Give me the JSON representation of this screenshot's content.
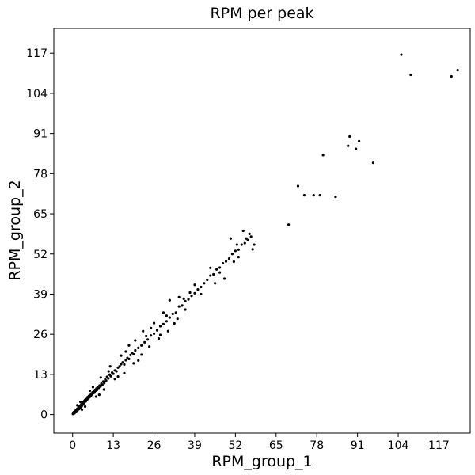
{
  "chart_data": {
    "type": "scatter",
    "title": "RPM per peak",
    "xlabel": "RPM_group_1",
    "ylabel": "RPM_group_2",
    "xlim": [
      -6,
      127
    ],
    "ylim": [
      -6,
      125
    ],
    "xticks": [
      0,
      13,
      26,
      39,
      52,
      65,
      78,
      91,
      104,
      117
    ],
    "yticks": [
      0,
      13,
      26,
      39,
      52,
      65,
      78,
      91,
      104,
      117
    ],
    "grid": false,
    "point_color": "#000000",
    "points": [
      [
        0.1,
        0.2
      ],
      [
        0.2,
        0.4
      ],
      [
        0.3,
        0.3
      ],
      [
        0.4,
        0.8
      ],
      [
        0.5,
        0.6
      ],
      [
        0.6,
        0.4
      ],
      [
        0.7,
        1.0
      ],
      [
        0.8,
        0.9
      ],
      [
        0.9,
        1.2
      ],
      [
        1.0,
        1.1
      ],
      [
        1.1,
        0.8
      ],
      [
        1.2,
        1.5
      ],
      [
        1.3,
        1.3
      ],
      [
        1.4,
        1.6
      ],
      [
        1.5,
        1.9
      ],
      [
        1.6,
        1.4
      ],
      [
        1.7,
        2.0
      ],
      [
        1.8,
        1.7
      ],
      [
        1.9,
        2.3
      ],
      [
        2.0,
        2.1
      ],
      [
        2.1,
        1.8
      ],
      [
        2.2,
        2.6
      ],
      [
        2.3,
        2.4
      ],
      [
        2.4,
        2.9
      ],
      [
        2.5,
        2.3
      ],
      [
        2.6,
        3.0
      ],
      [
        2.7,
        2.8
      ],
      [
        2.8,
        3.3
      ],
      [
        2.9,
        2.7
      ],
      [
        3.0,
        3.4
      ],
      [
        3.1,
        3.1
      ],
      [
        3.2,
        3.7
      ],
      [
        3.3,
        3.3
      ],
      [
        3.4,
        4.0
      ],
      [
        3.5,
        3.6
      ],
      [
        3.6,
        4.2
      ],
      [
        3.7,
        3.8
      ],
      [
        3.8,
        4.5
      ],
      [
        3.9,
        4.1
      ],
      [
        4.0,
        4.7
      ],
      [
        4.2,
        4.3
      ],
      [
        4.4,
        5.0
      ],
      [
        4.6,
        4.8
      ],
      [
        4.8,
        5.6
      ],
      [
        5.0,
        5.2
      ],
      [
        5.2,
        6.0
      ],
      [
        5.4,
        5.6
      ],
      [
        5.6,
        6.3
      ],
      [
        5.8,
        6.0
      ],
      [
        6.0,
        6.8
      ],
      [
        6.2,
        6.5
      ],
      [
        6.4,
        7.2
      ],
      [
        6.6,
        6.9
      ],
      [
        6.8,
        7.6
      ],
      [
        7.0,
        7.1
      ],
      [
        7.2,
        8.0
      ],
      [
        7.4,
        7.7
      ],
      [
        7.6,
        8.4
      ],
      [
        7.8,
        8.0
      ],
      [
        8.0,
        8.9
      ],
      [
        8.3,
        8.6
      ],
      [
        8.6,
        9.4
      ],
      [
        8.9,
        9.1
      ],
      [
        9.2,
        10.0
      ],
      [
        9.5,
        9.6
      ],
      [
        9.8,
        10.7
      ],
      [
        10.1,
        10.2
      ],
      [
        10.4,
        11.4
      ],
      [
        10.7,
        11.0
      ],
      [
        11.0,
        12.2
      ],
      [
        11.4,
        11.7
      ],
      [
        11.8,
        12.9
      ],
      [
        12.2,
        12.4
      ],
      [
        12.6,
        13.6
      ],
      [
        13.0,
        13.2
      ],
      [
        13.5,
        14.3
      ],
      [
        14.0,
        14.0
      ],
      [
        14.5,
        15.2
      ],
      [
        15.0,
        15.6
      ],
      [
        15.5,
        16.3
      ],
      [
        16.0,
        16.9
      ],
      [
        16.5,
        16.2
      ],
      [
        17.0,
        17.6
      ],
      [
        17.5,
        18.3
      ],
      [
        18.0,
        18.0
      ],
      [
        18.5,
        19.3
      ],
      [
        19.0,
        20.0
      ],
      [
        19.5,
        19.5
      ],
      [
        20.0,
        20.8
      ],
      [
        21.0,
        21.6
      ],
      [
        22.0,
        22.4
      ],
      [
        23.0,
        23.4
      ],
      [
        24.0,
        24.3
      ],
      [
        25.0,
        25.6
      ],
      [
        26.0,
        26.2
      ],
      [
        27.0,
        27.3
      ],
      [
        28.0,
        28.6
      ],
      [
        29.0,
        29.3
      ],
      [
        30.0,
        30.2
      ],
      [
        31.0,
        31.4
      ],
      [
        32.0,
        32.6
      ],
      [
        33.0,
        33.0
      ],
      [
        34.0,
        35.0
      ],
      [
        35.0,
        35.3
      ],
      [
        36.0,
        36.7
      ],
      [
        37.0,
        37.3
      ],
      [
        38.0,
        38.4
      ],
      [
        39.0,
        39.3
      ],
      [
        40.0,
        40.5
      ],
      [
        41.0,
        41.3
      ],
      [
        42.0,
        42.5
      ],
      [
        43.0,
        43.6
      ],
      [
        44.0,
        45.0
      ],
      [
        45.0,
        45.4
      ],
      [
        46.0,
        47.0
      ],
      [
        47.0,
        47.6
      ],
      [
        48.0,
        49.0
      ],
      [
        49.0,
        49.6
      ],
      [
        50.0,
        50.5
      ],
      [
        51.0,
        52.0
      ],
      [
        52.0,
        53.0
      ],
      [
        53.0,
        53.4
      ],
      [
        54.0,
        55.0
      ],
      [
        55.0,
        55.5
      ],
      [
        56.0,
        56.5
      ],
      [
        57.0,
        57.6
      ],
      [
        2.5,
        4.1
      ],
      [
        4.0,
        2.6
      ],
      [
        6.5,
        8.9
      ],
      [
        7.5,
        5.8
      ],
      [
        9.0,
        12.0
      ],
      [
        10.0,
        8.1
      ],
      [
        12.0,
        15.6
      ],
      [
        13.5,
        11.5
      ],
      [
        15.5,
        19.1
      ],
      [
        16.5,
        13.4
      ],
      [
        18.0,
        22.4
      ],
      [
        19.5,
        16.6
      ],
      [
        20.0,
        24.0
      ],
      [
        22.0,
        19.4
      ],
      [
        22.5,
        27.0
      ],
      [
        24.5,
        22.0
      ],
      [
        26.0,
        29.6
      ],
      [
        27.5,
        24.6
      ],
      [
        29.0,
        33.0
      ],
      [
        30.5,
        27.0
      ],
      [
        31.0,
        37.0
      ],
      [
        32.5,
        29.5
      ],
      [
        34.0,
        38.0
      ],
      [
        36.0,
        34.0
      ],
      [
        39.0,
        42.0
      ],
      [
        41.0,
        39.0
      ],
      [
        47.0,
        46.0
      ],
      [
        48.5,
        44.0
      ],
      [
        50.5,
        57.0
      ],
      [
        53.0,
        51.0
      ],
      [
        54.5,
        59.5
      ],
      [
        57.5,
        53.5
      ],
      [
        58.0,
        55.0
      ],
      [
        56.5,
        58.5
      ],
      [
        1.5,
        3.0
      ],
      [
        3.0,
        1.6
      ],
      [
        5.5,
        7.7
      ],
      [
        8.5,
        6.4
      ],
      [
        11.5,
        14.0
      ],
      [
        14.5,
        12.3
      ],
      [
        17.0,
        20.4
      ],
      [
        21.0,
        17.5
      ],
      [
        23.5,
        25.4
      ],
      [
        25.0,
        28.0
      ],
      [
        28.0,
        25.8
      ],
      [
        30.0,
        32.0
      ],
      [
        33.5,
        31.0
      ],
      [
        35.5,
        37.5
      ],
      [
        37.5,
        39.5
      ],
      [
        44.0,
        47.5
      ],
      [
        45.5,
        42.5
      ],
      [
        51.5,
        49.5
      ],
      [
        52.5,
        55.0
      ],
      [
        55.5,
        57.0
      ],
      [
        69.0,
        61.5
      ],
      [
        72.0,
        74.0
      ],
      [
        74.0,
        71.0
      ],
      [
        77.0,
        71.0
      ],
      [
        79.0,
        71.0
      ],
      [
        80.0,
        84.0
      ],
      [
        84.0,
        70.5
      ],
      [
        88.0,
        87.0
      ],
      [
        88.5,
        90.0
      ],
      [
        90.5,
        86.0
      ],
      [
        91.5,
        88.5
      ],
      [
        96.0,
        81.5
      ],
      [
        105.0,
        116.5
      ],
      [
        108.0,
        110.0
      ],
      [
        121.0,
        109.5
      ],
      [
        123.0,
        111.5
      ]
    ]
  }
}
